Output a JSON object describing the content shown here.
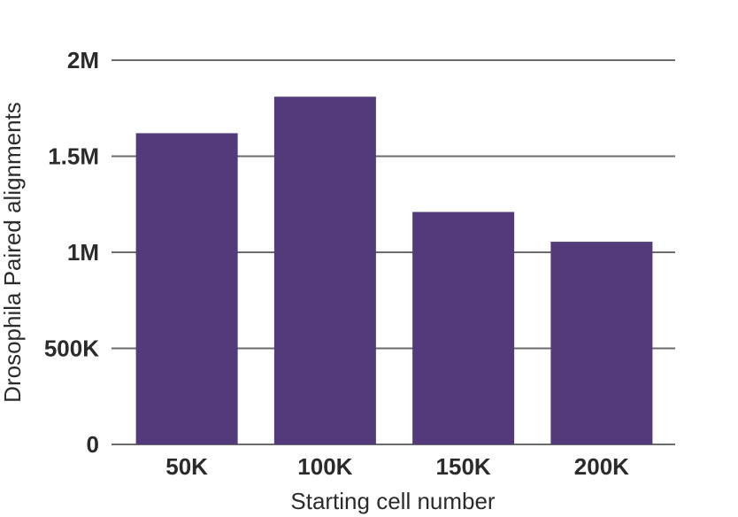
{
  "chart_data": {
    "type": "bar",
    "title": "",
    "xlabel": "Starting cell number",
    "ylabel": "Drosophila Paired alignments",
    "categories": [
      "50K",
      "100K",
      "150K",
      "200K"
    ],
    "values": [
      1620000,
      1810000,
      1210000,
      1055000
    ],
    "ylim": [
      0,
      2000000
    ],
    "yticks": [
      0,
      500000,
      1000000,
      1500000,
      2000000
    ],
    "ytick_labels": [
      "0",
      "500K",
      "1M",
      "1.5M",
      "2M"
    ],
    "grid": true,
    "bar_color": "#533a7b",
    "grid_color": "#6b6b6b"
  }
}
